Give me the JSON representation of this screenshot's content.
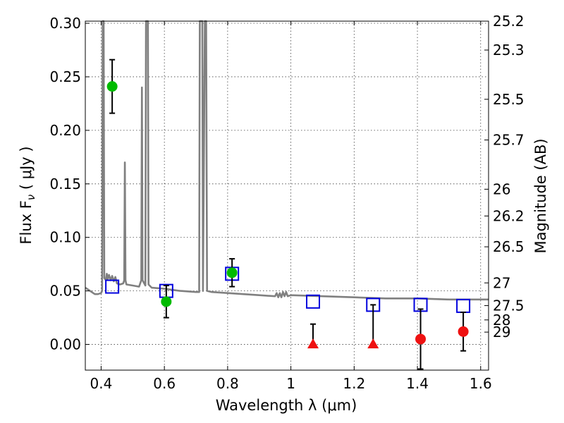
{
  "chart_data": {
    "type": "scatter",
    "xlabel": "Wavelength  λ (μm)",
    "ylabel": "Flux  F",
    "ylabel_subscript": "ν",
    "ylabel_unit": " ( μJy )",
    "y2label": "Magnitude (AB)",
    "xlim": [
      0.35,
      1.625
    ],
    "ylim": [
      -0.024,
      0.302
    ],
    "grid": true,
    "x_ticks": [
      0.4,
      0.6,
      0.8,
      1.0,
      1.2,
      1.4,
      1.6
    ],
    "x_tick_labels": [
      "0.4",
      "0.6",
      "0.8",
      "1",
      "1.2",
      "1.4",
      "1.6"
    ],
    "y_ticks": [
      0.0,
      0.05,
      0.1,
      0.15,
      0.2,
      0.25,
      0.3
    ],
    "y_tick_labels": [
      "0.00",
      "0.05",
      "0.10",
      "0.15",
      "0.20",
      "0.25",
      "0.30"
    ],
    "y2_ticks": [
      {
        "label": "25.2",
        "flux": 0.302
      },
      {
        "label": "25.3",
        "flux": 0.275
      },
      {
        "label": "25.5",
        "flux": 0.229
      },
      {
        "label": "25.7",
        "flux": 0.191
      },
      {
        "label": "26",
        "flux": 0.145
      },
      {
        "label": "26.2",
        "flux": 0.12
      },
      {
        "label": "26.5",
        "flux": 0.0912
      },
      {
        "label": "27",
        "flux": 0.0575
      },
      {
        "label": "27.5",
        "flux": 0.0363
      },
      {
        "label": "28",
        "flux": 0.0229
      },
      {
        "label": "29",
        "flux": 0.0115
      }
    ],
    "series": [
      {
        "marker": "circle",
        "color": "#00bb00",
        "points": [
          {
            "x": 0.435,
            "y": 0.241,
            "err": 0.025
          },
          {
            "x": 0.606,
            "y": 0.04,
            "err": 0.015
          },
          {
            "x": 0.814,
            "y": 0.067,
            "err": 0.013
          }
        ]
      },
      {
        "marker": "circle",
        "color": "#ee1111",
        "points": [
          {
            "x": 1.41,
            "y": 0.005,
            "err": 0.028
          },
          {
            "x": 1.545,
            "y": 0.012,
            "err": 0.018
          }
        ]
      },
      {
        "marker": "triangle",
        "color": "#ee1111",
        "points": [
          {
            "x": 1.07,
            "y": 0.0,
            "err_up": 0.019
          },
          {
            "x": 1.26,
            "y": 0.0,
            "err_up": 0.037
          }
        ]
      },
      {
        "marker": "square-open",
        "color": "#0000dd",
        "points": [
          {
            "x": 0.435,
            "y": 0.054
          },
          {
            "x": 0.606,
            "y": 0.05
          },
          {
            "x": 0.814,
            "y": 0.066
          },
          {
            "x": 1.07,
            "y": 0.04
          },
          {
            "x": 1.26,
            "y": 0.037
          },
          {
            "x": 1.41,
            "y": 0.037
          },
          {
            "x": 1.545,
            "y": 0.036
          }
        ]
      }
    ],
    "model_spectrum": {
      "color": "#808080",
      "points": [
        [
          0.35,
          0.053
        ],
        [
          0.36,
          0.051
        ],
        [
          0.37,
          0.049
        ],
        [
          0.38,
          0.047
        ],
        [
          0.39,
          0.047
        ],
        [
          0.4,
          0.048
        ],
        [
          0.403,
          0.05
        ],
        [
          0.405,
          0.302
        ],
        [
          0.408,
          0.302
        ],
        [
          0.41,
          0.062
        ],
        [
          0.415,
          0.06
        ],
        [
          0.418,
          0.066
        ],
        [
          0.421,
          0.061
        ],
        [
          0.425,
          0.065
        ],
        [
          0.43,
          0.06
        ],
        [
          0.435,
          0.064
        ],
        [
          0.44,
          0.059
        ],
        [
          0.445,
          0.063
        ],
        [
          0.45,
          0.057
        ],
        [
          0.46,
          0.056
        ],
        [
          0.47,
          0.057
        ],
        [
          0.473,
          0.06
        ],
        [
          0.475,
          0.17
        ],
        [
          0.477,
          0.06
        ],
        [
          0.48,
          0.056
        ],
        [
          0.5,
          0.055
        ],
        [
          0.52,
          0.054
        ],
        [
          0.527,
          0.06
        ],
        [
          0.529,
          0.24
        ],
        [
          0.531,
          0.06
        ],
        [
          0.54,
          0.055
        ],
        [
          0.542,
          0.302
        ],
        [
          0.546,
          0.302
        ],
        [
          0.548,
          0.302
        ],
        [
          0.55,
          0.056
        ],
        [
          0.56,
          0.053
        ],
        [
          0.6,
          0.052
        ],
        [
          0.65,
          0.05
        ],
        [
          0.7,
          0.049
        ],
        [
          0.71,
          0.049
        ],
        [
          0.712,
          0.302
        ],
        [
          0.72,
          0.302
        ],
        [
          0.722,
          0.05
        ],
        [
          0.728,
          0.302
        ],
        [
          0.732,
          0.302
        ],
        [
          0.735,
          0.05
        ],
        [
          0.75,
          0.049
        ],
        [
          0.8,
          0.048
        ],
        [
          0.85,
          0.047
        ],
        [
          0.9,
          0.046
        ],
        [
          0.95,
          0.045
        ],
        [
          0.955,
          0.048
        ],
        [
          0.96,
          0.044
        ],
        [
          0.965,
          0.048
        ],
        [
          0.97,
          0.044
        ],
        [
          0.975,
          0.049
        ],
        [
          0.98,
          0.045
        ],
        [
          0.985,
          0.049
        ],
        [
          0.99,
          0.045
        ],
        [
          1.0,
          0.046
        ],
        [
          1.1,
          0.045
        ],
        [
          1.2,
          0.044
        ],
        [
          1.3,
          0.043
        ],
        [
          1.4,
          0.043
        ],
        [
          1.5,
          0.042
        ],
        [
          1.625,
          0.042
        ]
      ]
    }
  }
}
